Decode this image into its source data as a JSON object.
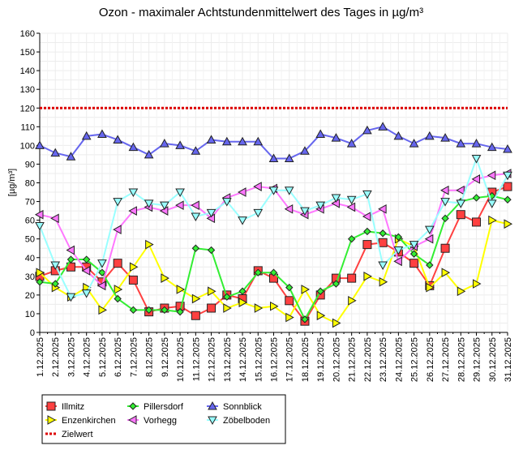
{
  "chart_data": {
    "type": "line",
    "title": "Ozon -  maximaler Achtstundenmittelwert des Tages in µg/m³",
    "ylabel": "[µg/m³]",
    "xlabel": "",
    "ylim": [
      0,
      160
    ],
    "yticks": [
      0,
      10,
      20,
      30,
      40,
      50,
      60,
      70,
      80,
      90,
      100,
      110,
      120,
      130,
      140,
      150,
      160
    ],
    "grid": true,
    "legend_position": "bottom-left",
    "x": [
      "1.12.2025",
      "2.12.2025",
      "3.12.2025",
      "4.12.2025",
      "5.12.2025",
      "6.12.2025",
      "7.12.2025",
      "8.12.2025",
      "9.12.2025",
      "10.12.2025",
      "11.12.2025",
      "12.12.2025",
      "13.12.2025",
      "14.12.2025",
      "15.12.2025",
      "16.12.2025",
      "17.12.2025",
      "18.12.2025",
      "19.12.2025",
      "20.12.2025",
      "21.12.2025",
      "22.12.2025",
      "23.12.2025",
      "24.12.2025",
      "25.12.2025",
      "26.12.2025",
      "27.12.2025",
      "28.12.2025",
      "29.12.2025",
      "30.12.2025",
      "31.12.2025"
    ],
    "series": [
      {
        "name": "Illmitz",
        "color": "#ff4040",
        "marker": "square",
        "values": [
          30,
          33,
          35,
          35,
          27,
          37,
          28,
          11,
          13,
          14,
          9,
          13,
          20,
          18,
          33,
          29,
          17,
          6,
          20,
          29,
          29,
          47,
          48,
          43,
          37,
          25,
          45,
          63,
          59,
          75,
          78
        ]
      },
      {
        "name": "Enzenkirchen",
        "color": "#ffff00",
        "marker": "triangle-right",
        "values": [
          32,
          24,
          19,
          24,
          12,
          23,
          35,
          47,
          29,
          23,
          18,
          22,
          13,
          16,
          13,
          14,
          8,
          23,
          9,
          5,
          17,
          30,
          27,
          50,
          46,
          24,
          32,
          22,
          26,
          60,
          58
        ]
      },
      {
        "name": "Pillersdorf",
        "color": "#33ee33",
        "marker": "diamond",
        "values": [
          27,
          26,
          39,
          39,
          32,
          18,
          12,
          12,
          12,
          11,
          45,
          44,
          19,
          22,
          32,
          32,
          24,
          7,
          22,
          26,
          50,
          54,
          53,
          51,
          42,
          36,
          61,
          70,
          72,
          73,
          71
        ]
      },
      {
        "name": "Vorhegg",
        "color": "#ff77ff",
        "marker": "triangle-left",
        "values": [
          63,
          61,
          44,
          33,
          25,
          55,
          65,
          67,
          65,
          68,
          68,
          61,
          72,
          75,
          78,
          77,
          66,
          63,
          66,
          69,
          67,
          62,
          66,
          38,
          46,
          50,
          76,
          76,
          82,
          84,
          85
        ]
      },
      {
        "name": "Sonnblick",
        "color": "#6666ee",
        "marker": "triangle-up",
        "values": [
          100,
          96,
          94,
          105,
          106,
          103,
          99,
          95,
          101,
          100,
          97,
          103,
          102,
          102,
          102,
          93,
          93,
          97,
          106,
          104,
          101,
          108,
          110,
          105,
          101,
          105,
          104,
          101,
          101,
          99,
          98
        ]
      },
      {
        "name": "Zöbelboden",
        "color": "#99ffff",
        "marker": "triangle-down",
        "values": [
          57,
          36,
          19,
          21,
          37,
          70,
          75,
          69,
          68,
          75,
          62,
          64,
          70,
          60,
          64,
          76,
          76,
          65,
          68,
          72,
          71,
          74,
          36,
          44,
          47,
          55,
          70,
          69,
          93,
          69,
          84
        ]
      }
    ],
    "reference_line": {
      "name": "Zielwert",
      "value": 120,
      "color": "#dd0000"
    }
  }
}
